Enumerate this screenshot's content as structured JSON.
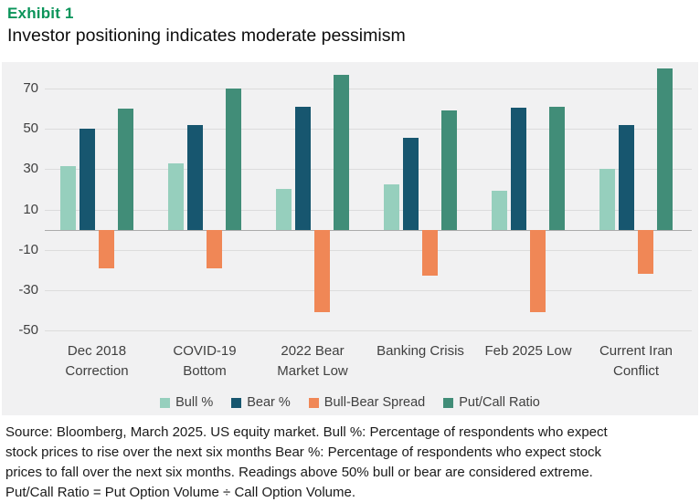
{
  "header": {
    "exhibit_label": "Exhibit 1",
    "title": "Investor positioning indicates moderate pessimism"
  },
  "colors": {
    "exhibit_green": "#0a945a",
    "plot_background": "#f1f1f2",
    "gridline": "#dcdcdc",
    "zero_line": "#ababab",
    "text_gray": "#404040"
  },
  "chart_data": {
    "type": "bar",
    "title": "",
    "xlabel": "",
    "ylabel": "",
    "grid": true,
    "legend_position": "bottom",
    "ylim": [
      -52,
      83
    ],
    "yticks": [
      70,
      50,
      30,
      10,
      -10,
      -30,
      -50
    ],
    "categories": [
      "Dec 2018\nCorrection",
      "COVID-19\nBottom",
      "2022 Bear\nMarket Low",
      "Banking Crisis",
      "Feb 2025 Low",
      "Current Iran\nConflict"
    ],
    "series": [
      {
        "name": "Bull %",
        "color": "#96cfbd",
        "values": [
          31.5,
          33,
          20,
          22.5,
          19.5,
          30
        ]
      },
      {
        "name": "Bear %",
        "color": "#17566f",
        "values": [
          50,
          52,
          61,
          45.5,
          60.5,
          52
        ]
      },
      {
        "name": "Bull-Bear Spread",
        "color": "#f08756",
        "values": [
          -19,
          -19,
          -41,
          -23,
          -41,
          -22
        ]
      },
      {
        "name": "Put/Call Ratio",
        "color": "#418d78",
        "values": [
          60,
          70,
          77,
          59,
          61,
          80
        ]
      }
    ]
  },
  "footer": {
    "source_lines": [
      "Source: Bloomberg, March 2025. US equity market. Bull %: Percentage of respondents who expect",
      "stock prices to rise over the next six months Bear %: Percentage of respondents who expect stock",
      "prices to fall over the next six months. Readings above 50% bull or bear are considered extreme.",
      "Put/Call Ratio = Put Option Volume ÷ Call Option Volume."
    ]
  }
}
